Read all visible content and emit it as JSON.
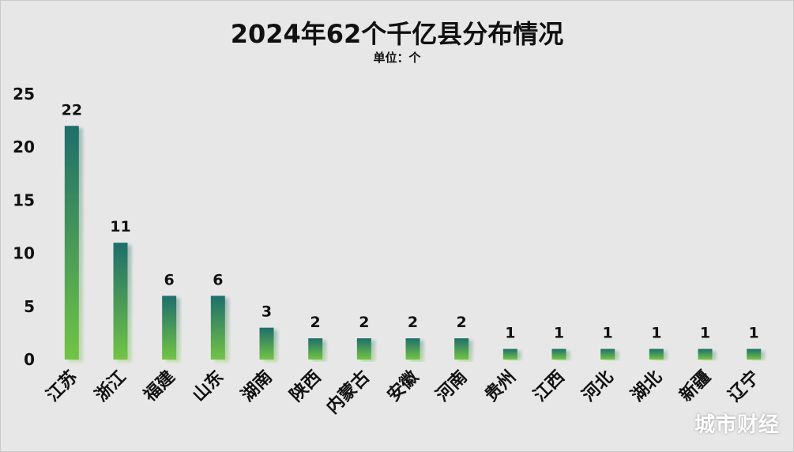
{
  "chart_data": {
    "type": "bar",
    "title": "2024年62个千亿县分布情况",
    "subtitle": "单位：个",
    "categories": [
      "江苏",
      "浙江",
      "福建",
      "山东",
      "湖南",
      "陕西",
      "内蒙古",
      "安徽",
      "河南",
      "贵州",
      "江西",
      "河北",
      "湖北",
      "新疆",
      "辽宁"
    ],
    "values": [
      22,
      11,
      6,
      6,
      3,
      2,
      2,
      2,
      2,
      1,
      1,
      1,
      1,
      1,
      1
    ],
    "ylim": [
      0,
      25
    ],
    "yticks": [
      0,
      5,
      10,
      15,
      20,
      25
    ],
    "xlabel": "",
    "ylabel": "",
    "grid": false,
    "legend": "none",
    "colors": {
      "bar_top": "#1e6e6c",
      "bar_bottom": "#72c444",
      "background": "#e8e7e7",
      "text": "#111111"
    }
  },
  "watermark": "城市财经"
}
